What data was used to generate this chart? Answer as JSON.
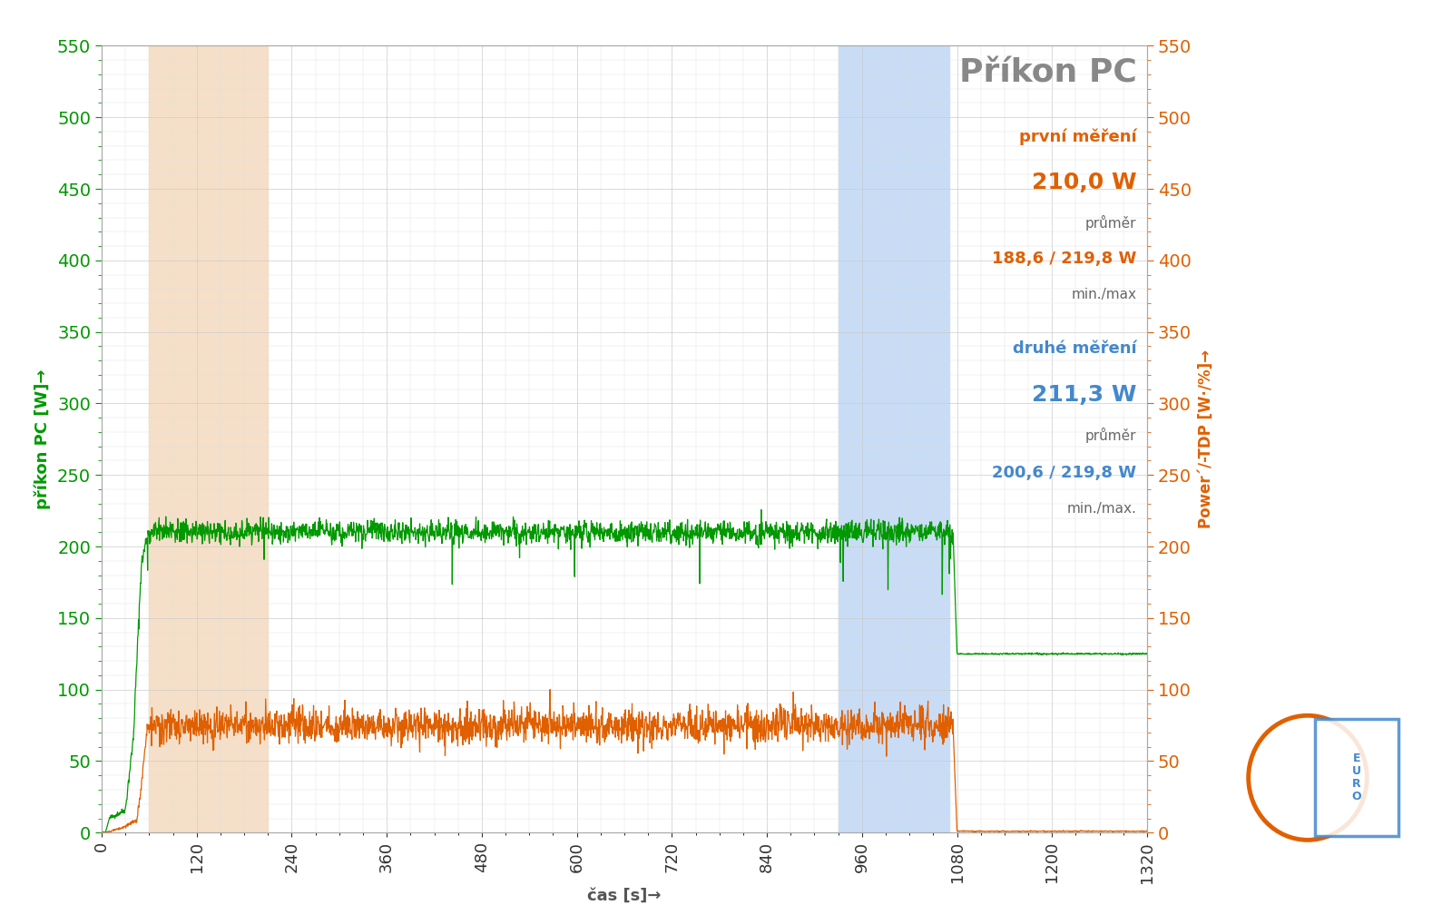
{
  "title": "Příkon PC",
  "left_ylabel": "příkon PC [W]→",
  "right_ylabel": "Power´/-TDP [W·/%]→",
  "xlabel": "čas [s]→",
  "ylim": [
    0,
    550
  ],
  "xlim": [
    0,
    1320
  ],
  "xticks": [
    0,
    120,
    240,
    360,
    480,
    600,
    720,
    840,
    960,
    1080,
    1200,
    1320
  ],
  "yticks": [
    0,
    50,
    100,
    150,
    200,
    250,
    300,
    350,
    400,
    450,
    500,
    550
  ],
  "orange_region_start": 60,
  "orange_region_end": 210,
  "blue_region_start": 930,
  "blue_region_end": 1070,
  "green_color": "#009900",
  "orange_color": "#e06000",
  "blue_color": "#4488cc",
  "title_color": "#888888",
  "bg_color": "#ffffff",
  "grid_color": "#cccccc",
  "orange_bg": "#f5dfc8",
  "blue_bg": "#c8dcf5",
  "annotation_orange_label": "první měření",
  "annotation_orange_avg": "210,0 W",
  "annotation_orange_avg_label": "průměr",
  "annotation_orange_minmax": "188,6 / 219,8 W",
  "annotation_orange_minmax_label": "min./max",
  "annotation_blue_label": "druhé měření",
  "annotation_blue_avg": "211,3 W",
  "annotation_blue_avg_label": "průměr",
  "annotation_blue_minmax": "200,6 / 219,8 W",
  "annotation_blue_minmax_label": "min./max.",
  "green_load_value": 210,
  "green_load_start_x": 58,
  "green_load_end_x": 1075,
  "green_idle2_value": 125,
  "orange_load_value": 75,
  "orange_load_start_x": 60,
  "orange_load_end_x": 1075
}
